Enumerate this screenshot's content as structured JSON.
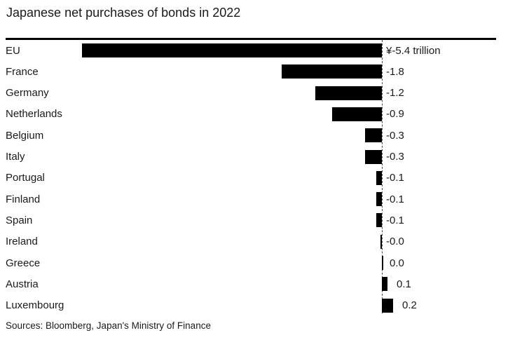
{
  "page": {
    "title": "Japanese net purchases of bonds in 2022",
    "source": "Sources: Bloomberg, Japan's Ministry of Finance"
  },
  "colors": {
    "background": "#ffffff",
    "bar": "#000000",
    "text": "#1a1a1a",
    "top_rule": "#000000",
    "zero_baseline": "#4d4d4d"
  },
  "chart_data": {
    "type": "bar",
    "orientation": "horizontal",
    "title": "Japanese net purchases of bonds in 2022",
    "unit": "trillion yen",
    "categories": [
      "EU",
      "France",
      "Germany",
      "Netherlands",
      "Belgium",
      "Italy",
      "Portugal",
      "Finland",
      "Spain",
      "Ireland",
      "Greece",
      "Austria",
      "Luxembourg"
    ],
    "values": [
      -5.4,
      -1.8,
      -1.2,
      -0.9,
      -0.3,
      -0.3,
      -0.1,
      -0.1,
      -0.1,
      -0.0,
      0.0,
      0.1,
      0.2
    ],
    "value_labels": [
      "¥-5.4 trillion",
      "-1.8",
      "-1.2",
      "-0.9",
      "-0.3",
      "-0.3",
      "-0.1",
      "-0.1",
      "-0.1",
      "-0.0",
      "0.0",
      "0.1",
      "0.2"
    ],
    "xlim": [
      -6.8,
      2.0
    ],
    "grid": false,
    "legend": false,
    "baseline_style": "dashed-vertical-at-zero",
    "source": "Sources: Bloomberg, Japan's Ministry of Finance"
  }
}
